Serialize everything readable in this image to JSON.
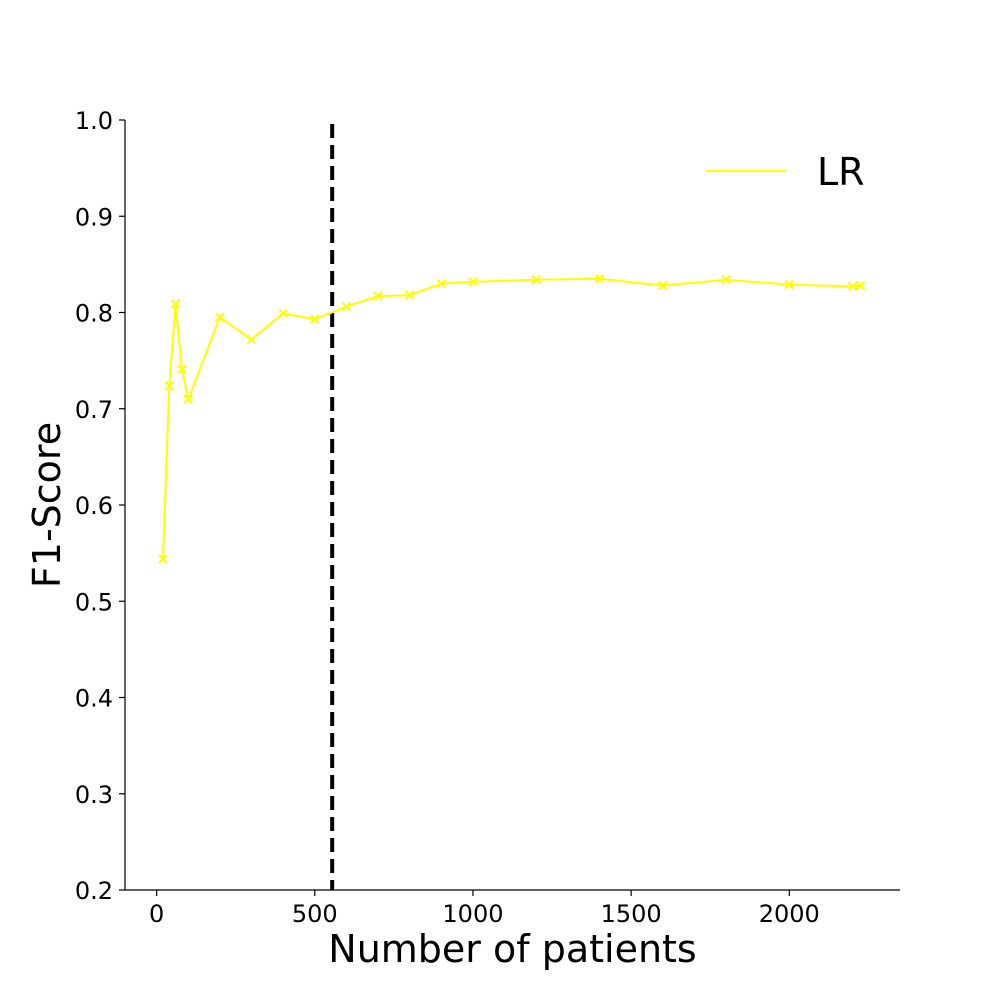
{
  "chart_data": {
    "type": "line",
    "title": "",
    "xlabel": "Number of patients",
    "ylabel": "F1-Score",
    "xlim": [
      -100,
      2350
    ],
    "ylim": [
      0.2,
      1.0
    ],
    "xticks": [
      0,
      500,
      1000,
      1500,
      2000
    ],
    "yticks": [
      0.2,
      0.3,
      0.4,
      0.5,
      0.6,
      0.7,
      0.8,
      0.9,
      1.0
    ],
    "xtick_labels": [
      "0",
      "500",
      "1000",
      "1500",
      "2000"
    ],
    "ytick_labels": [
      "0.2",
      "0.3",
      "0.4",
      "0.5",
      "0.6",
      "0.7",
      "0.8",
      "0.9",
      "1.0"
    ],
    "grid": false,
    "legend_position": "top-right",
    "vline_x": 555,
    "series": [
      {
        "name": "LR",
        "color": "#ffff00",
        "marker": "x",
        "x": [
          20,
          40,
          60,
          80,
          100,
          200,
          300,
          400,
          500,
          600,
          700,
          800,
          900,
          1000,
          1200,
          1400,
          1600,
          1800,
          2000,
          2200,
          2225
        ],
        "y": [
          0.544,
          0.724,
          0.809,
          0.741,
          0.71,
          0.795,
          0.772,
          0.799,
          0.793,
          0.806,
          0.817,
          0.818,
          0.83,
          0.832,
          0.834,
          0.835,
          0.828,
          0.834,
          0.829,
          0.827,
          0.828
        ]
      }
    ]
  }
}
